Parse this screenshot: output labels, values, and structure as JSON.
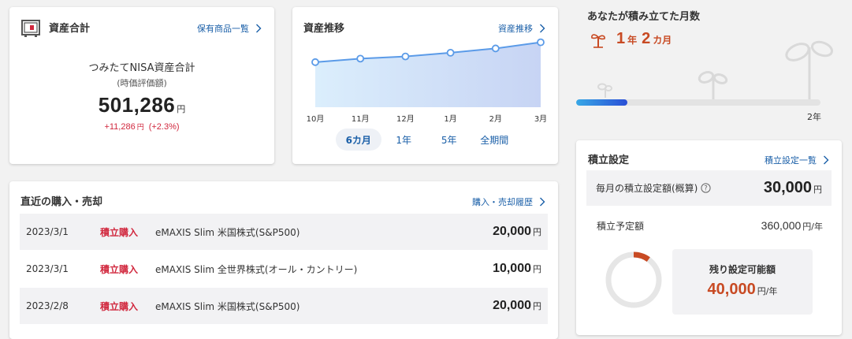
{
  "asset_card": {
    "title": "資産合計",
    "link": "保有商品一覧",
    "subtitle": "つみたてNISA資産合計",
    "note": "(時価評価額)",
    "total": "501,286",
    "total_unit": "円",
    "gain": "+11,286",
    "gain_unit": "円",
    "gain_pct": "(+2.3%)"
  },
  "trend_card": {
    "title": "資産推移",
    "link": "資産推移",
    "tabs": [
      "6カ月",
      "1年",
      "5年",
      "全期間"
    ],
    "active_tab": "6カ月",
    "chart_data": {
      "type": "area",
      "categories": [
        "10月",
        "11月",
        "12月",
        "1月",
        "2月",
        "3月"
      ],
      "values": [
        400000,
        418000,
        429000,
        448000,
        470000,
        501286
      ],
      "ylim": [
        170000,
        520000
      ],
      "color": "#5b9be8",
      "fill_from": "#dbeefc",
      "fill_to": "#c7d4f4"
    }
  },
  "transactions": {
    "title": "直近の購入・売却",
    "link": "購入・売却履歴",
    "rows": [
      {
        "date": "2023/3/1",
        "type": "積立購入",
        "fund": "eMAXIS Slim 米国株式(S&P500)",
        "amount": "20,000",
        "unit": "円"
      },
      {
        "date": "2023/3/1",
        "type": "積立購入",
        "fund": "eMAXIS Slim 全世界株式(オール・カントリー)",
        "amount": "10,000",
        "unit": "円"
      },
      {
        "date": "2023/2/8",
        "type": "積立購入",
        "fund": "eMAXIS Slim 米国株式(S&P500)",
        "amount": "20,000",
        "unit": "円"
      }
    ]
  },
  "months": {
    "title": "あなたが積み立てた月数",
    "years": "1",
    "years_unit": "年",
    "months": "2",
    "months_unit": "カ月",
    "progress": 0.21,
    "goal_label": "2年",
    "accent": "#c84a23"
  },
  "settings": {
    "title": "積立設定",
    "link": "積立設定一覧",
    "monthly_label": "毎月の積立設定額(概算)",
    "monthly_amount": "30,000",
    "monthly_unit": "円",
    "annual_label": "積立予定額",
    "annual_amount": "360,000",
    "annual_unit": "円/年",
    "remaining_label": "残り設定可能額",
    "remaining_amount": "40,000",
    "remaining_unit": "円/年",
    "used_fraction": 0.1
  },
  "colors": {
    "link": "#1a5fa8",
    "negative_red": "#d1283e",
    "accent_orange": "#c84a23"
  }
}
